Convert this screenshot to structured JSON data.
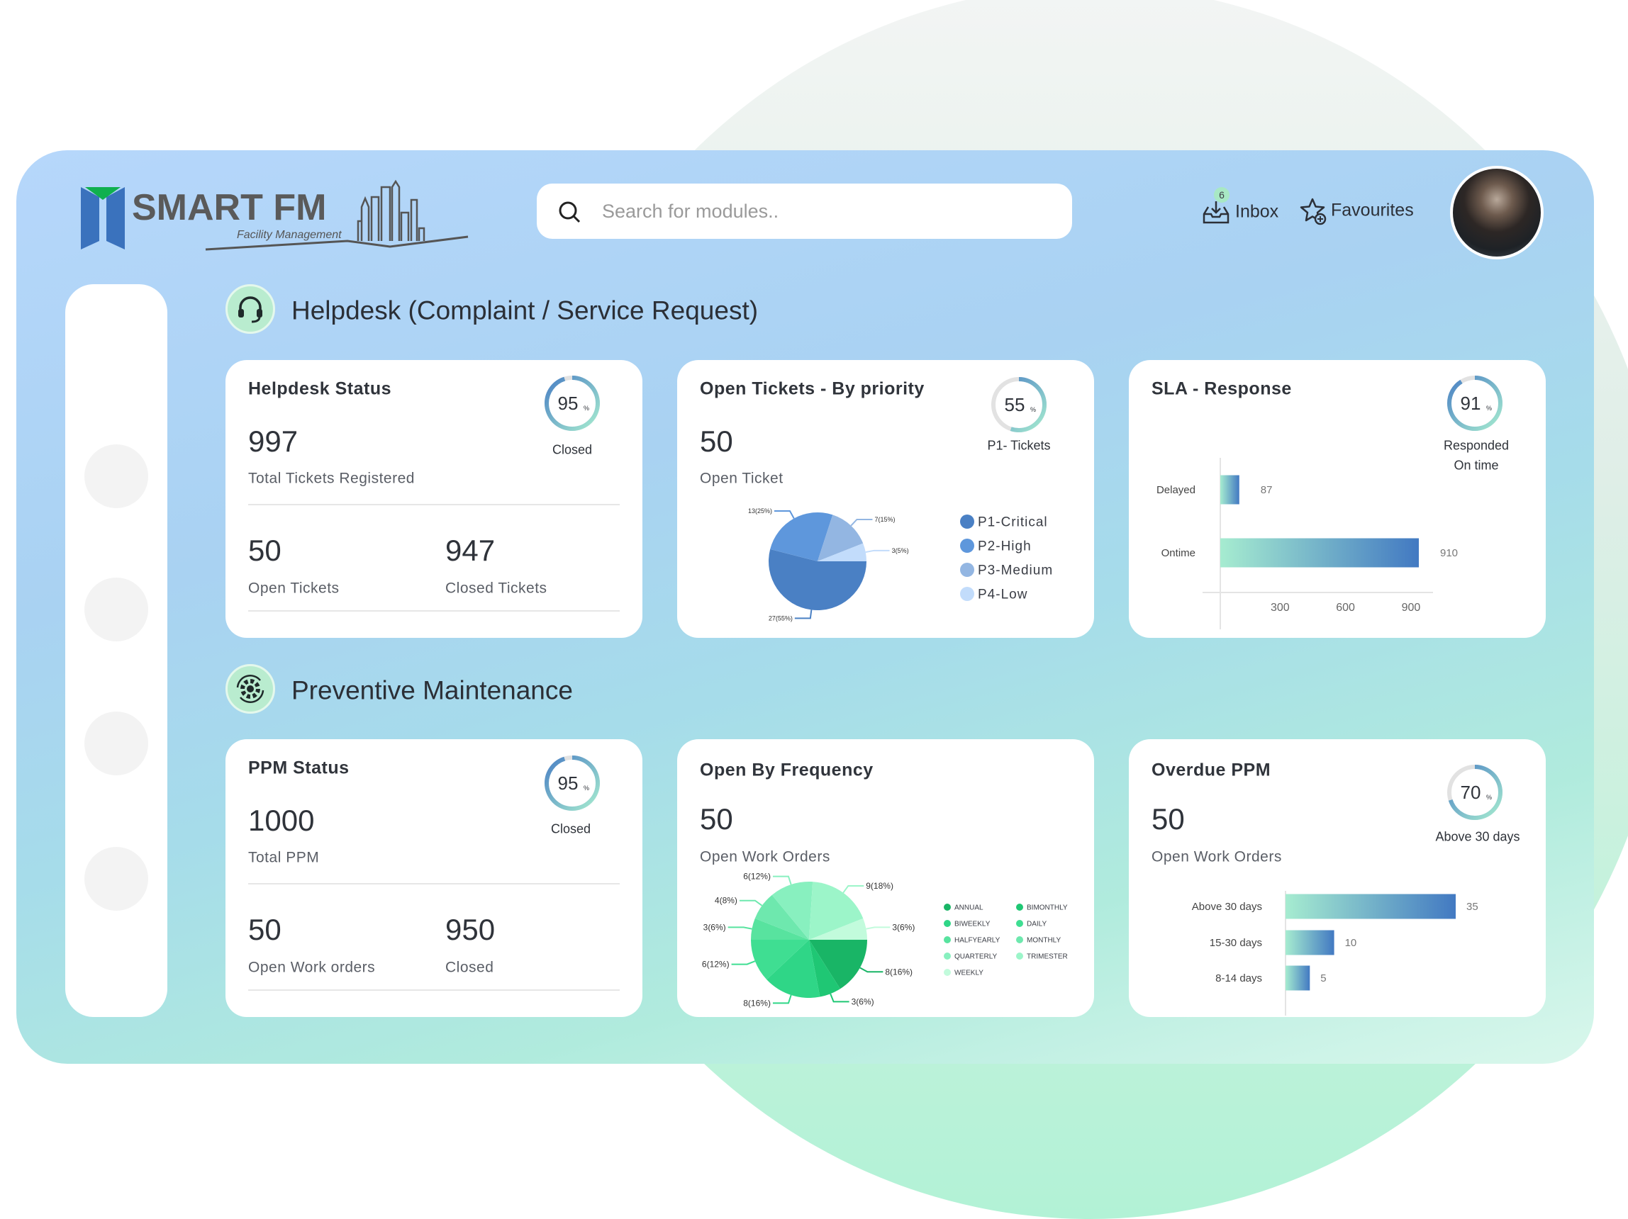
{
  "header": {
    "logo_text": "SMART FM",
    "logo_tagline": "Facility Management",
    "search_placeholder": "Search for modules..",
    "inbox_label": "Inbox",
    "inbox_badge": "6",
    "favourites_label": "Favourites"
  },
  "colors": {
    "accent_blue": "#4a80c4",
    "accent_green": "#a6ecd0",
    "badge": "#a8e8c4"
  },
  "sections": {
    "helpdesk": "Helpdesk (Complaint / Service Request)",
    "ppm": "Preventive Maintenance"
  },
  "helpdesk_status": {
    "title": "Helpdesk Status",
    "gauge_value": 95,
    "gauge_label": "Closed",
    "total": "997",
    "total_label": "Total Tickets Registered",
    "open": "50",
    "open_label": "Open Tickets",
    "closed": "947",
    "closed_label": "Closed Tickets"
  },
  "open_tickets": {
    "title": "Open Tickets - By priority",
    "gauge_value": 55,
    "gauge_label": "P1- Tickets",
    "value": "50",
    "value_label": "Open Ticket"
  },
  "sla": {
    "title": "SLA - Response",
    "gauge_value": 91,
    "gauge_label_1": "Responded",
    "gauge_label_2": "On time"
  },
  "ppm_status": {
    "title": "PPM Status",
    "gauge_value": 95,
    "gauge_label": "Closed",
    "total": "1000",
    "total_label": "Total PPM",
    "open": "50",
    "open_label": "Open Work orders",
    "closed": "950",
    "closed_label": "Closed"
  },
  "open_frequency": {
    "title": "Open By Frequency",
    "value": "50",
    "value_label": "Open Work Orders"
  },
  "overdue": {
    "title": "Overdue PPM",
    "gauge_value": 70,
    "gauge_label": "Above 30 days",
    "value": "50",
    "value_label": "Open Work Orders"
  },
  "chart_data": [
    {
      "type": "pie",
      "categories": [
        "P1-Critical",
        "P2-High",
        "P3-Medium",
        "P4-Low"
      ],
      "values": [
        27,
        13,
        7,
        3
      ],
      "labels": [
        "27(55%)",
        "13(25%)",
        "7(15%)",
        "3(5%)"
      ],
      "colors": [
        "#4a80c4",
        "#5e97dc",
        "#93b6e2",
        "#c2dcfb"
      ],
      "legend": "right"
    },
    {
      "type": "pie",
      "categories": [
        "ANNUAL",
        "BIMONTHLY",
        "BIWEEKLY",
        "DAILY",
        "HALFYEARLY",
        "MONTHLY",
        "QUARTERLY",
        "TRIMESTER",
        "WEEKLY"
      ],
      "values": [
        8,
        3,
        8,
        6,
        3,
        4,
        6,
        9,
        3
      ],
      "labels": [
        "8(16%)",
        "3(6%)",
        "8(16%)",
        "6(12%)",
        "3(6%)",
        "4(8%)",
        "6(12%)",
        "9(18%)",
        "3(6%)"
      ],
      "colors": [
        "#19b566",
        "#1fc774",
        "#2fd687",
        "#3fde92",
        "#58e39f",
        "#6ee8ae",
        "#88f0bf",
        "#9cf5c9",
        "#c2fbdc"
      ],
      "legend": "right"
    },
    {
      "type": "bar",
      "orientation": "horizontal",
      "categories": [
        "Delayed",
        "Ontime"
      ],
      "values": [
        87,
        910
      ],
      "xticks": [
        300,
        600,
        900
      ]
    },
    {
      "type": "bar",
      "orientation": "horizontal",
      "categories": [
        "Above 30 days",
        "15-30 days",
        "8-14 days"
      ],
      "values": [
        35,
        10,
        5
      ]
    }
  ]
}
